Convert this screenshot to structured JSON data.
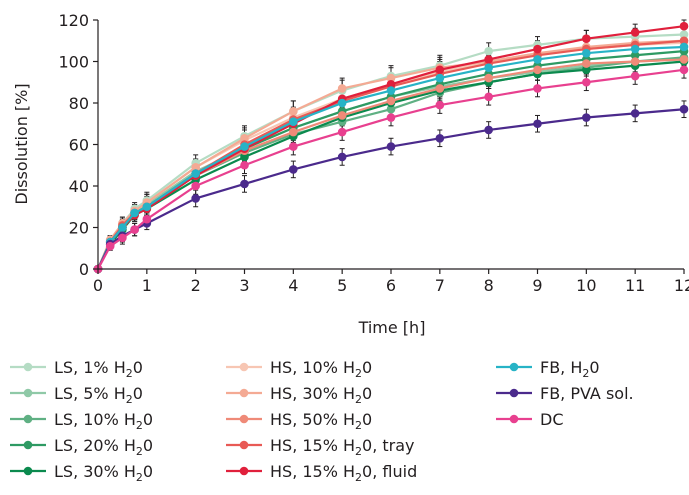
{
  "chart_data": {
    "type": "line",
    "xlabel": "Time [h]",
    "ylabel": "Dissolution [%]",
    "xlim": [
      0,
      12
    ],
    "ylim": [
      0,
      120
    ],
    "xticks": [
      0,
      1,
      2,
      3,
      4,
      5,
      6,
      7,
      8,
      9,
      10,
      11,
      12
    ],
    "yticks": [
      0,
      20,
      40,
      60,
      80,
      100,
      120
    ],
    "grid": false,
    "legend_position": "bottom",
    "x": [
      0,
      0.25,
      0.5,
      0.75,
      1,
      2,
      3,
      4,
      5,
      6,
      7,
      8,
      9,
      10,
      11,
      12
    ],
    "series": [
      {
        "name": "LS, 1% H",
        "sub": "2",
        "suffix": "0",
        "color": "#b5dcc4",
        "values": [
          0,
          14,
          22,
          29,
          33,
          51,
          64,
          76,
          86,
          93,
          98,
          105,
          108,
          111,
          112,
          113
        ],
        "err": [
          0,
          2,
          3,
          3,
          4,
          4,
          5,
          5,
          5,
          5,
          5,
          4,
          4,
          4,
          4,
          3
        ]
      },
      {
        "name": "LS, 5% H",
        "sub": "2",
        "suffix": "0",
        "color": "#8fc9a7",
        "values": [
          0,
          13,
          20,
          27,
          31,
          47,
          58,
          68,
          76,
          83,
          88,
          92,
          95,
          98,
          100,
          101
        ],
        "err": [
          0,
          2,
          3,
          3,
          4,
          4,
          4,
          4,
          4,
          4,
          4,
          4,
          4,
          3,
          3,
          3
        ]
      },
      {
        "name": "LS, 10% H",
        "sub": "2",
        "suffix": "0",
        "color": "#5fb083",
        "values": [
          0,
          13,
          20,
          27,
          30,
          45,
          56,
          65,
          71,
          77,
          85,
          90,
          94,
          97,
          100,
          102
        ],
        "err": [
          0,
          2,
          3,
          3,
          4,
          4,
          4,
          4,
          4,
          4,
          4,
          3,
          3,
          3,
          3,
          3
        ]
      },
      {
        "name": "LS, 20% H",
        "sub": "2",
        "suffix": "0",
        "color": "#2e9a63",
        "values": [
          0,
          13,
          20,
          27,
          30,
          46,
          58,
          68,
          76,
          83,
          89,
          94,
          98,
          101,
          103,
          105
        ],
        "err": [
          0,
          2,
          3,
          3,
          4,
          4,
          4,
          4,
          4,
          4,
          4,
          3,
          3,
          3,
          3,
          3
        ]
      },
      {
        "name": "LS, 30% H",
        "sub": "2",
        "suffix": "0",
        "color": "#0b8a4e",
        "values": [
          0,
          12,
          19,
          26,
          29,
          43,
          54,
          64,
          73,
          80,
          86,
          90,
          94,
          96,
          98,
          100
        ],
        "err": [
          0,
          2,
          3,
          3,
          4,
          4,
          4,
          4,
          4,
          4,
          4,
          3,
          3,
          3,
          3,
          3
        ]
      },
      {
        "name": "HS, 10% H",
        "sub": "2",
        "suffix": "0",
        "color": "#f7c6b3",
        "values": [
          0,
          14,
          21,
          28,
          32,
          49,
          62,
          73,
          82,
          89,
          95,
          100,
          104,
          106,
          108,
          109
        ],
        "err": [
          0,
          2,
          3,
          3,
          4,
          4,
          5,
          5,
          5,
          5,
          5,
          4,
          4,
          4,
          4,
          3
        ]
      },
      {
        "name": "HS, 30% H",
        "sub": "2",
        "suffix": "0",
        "color": "#f4aa94",
        "values": [
          0,
          14,
          22,
          28,
          32,
          49,
          63,
          76,
          87,
          92,
          97,
          100,
          104,
          107,
          109,
          110
        ],
        "err": [
          0,
          2,
          3,
          3,
          4,
          4,
          5,
          5,
          5,
          5,
          5,
          4,
          4,
          4,
          4,
          3
        ]
      },
      {
        "name": "HS, 50% H",
        "sub": "2",
        "suffix": "0",
        "color": "#ef8a78",
        "values": [
          0,
          13,
          20,
          26,
          30,
          45,
          57,
          66,
          74,
          81,
          87,
          92,
          96,
          99,
          100,
          101
        ],
        "err": [
          0,
          2,
          3,
          3,
          4,
          4,
          4,
          4,
          4,
          4,
          4,
          3,
          3,
          3,
          3,
          3
        ]
      },
      {
        "name": "HS, 15% H",
        "sub": "2",
        "suffix": "0, tray",
        "color": "#e85a55",
        "values": [
          0,
          13,
          21,
          27,
          30,
          46,
          60,
          72,
          81,
          88,
          94,
          99,
          103,
          106,
          108,
          110
        ],
        "err": [
          0,
          2,
          3,
          3,
          4,
          4,
          5,
          5,
          5,
          5,
          5,
          4,
          4,
          4,
          4,
          3
        ]
      },
      {
        "name": "HS, 15% H",
        "sub": "2",
        "suffix": "0, fluid",
        "color": "#e0203c",
        "values": [
          0,
          13,
          20,
          26,
          29,
          45,
          58,
          70,
          82,
          89,
          96,
          101,
          106,
          111,
          114,
          117
        ],
        "err": [
          0,
          2,
          3,
          3,
          4,
          4,
          5,
          5,
          5,
          5,
          5,
          4,
          4,
          4,
          4,
          3
        ]
      },
      {
        "name": "FB, H",
        "sub": "2",
        "suffix": "0",
        "color": "#27b3c6",
        "values": [
          0,
          13,
          20,
          27,
          30,
          46,
          59,
          71,
          80,
          86,
          92,
          97,
          101,
          104,
          106,
          107
        ],
        "err": [
          0,
          2,
          3,
          3,
          4,
          4,
          5,
          5,
          5,
          5,
          5,
          4,
          4,
          4,
          4,
          3
        ]
      },
      {
        "name": "FB, PVA sol.",
        "sub": "",
        "suffix": "",
        "color": "#4b2a8c",
        "values": [
          0,
          12,
          16,
          19,
          22,
          34,
          41,
          48,
          54,
          59,
          63,
          67,
          70,
          73,
          75,
          77
        ],
        "err": [
          0,
          2,
          3,
          3,
          3,
          4,
          4,
          4,
          4,
          4,
          4,
          4,
          4,
          4,
          4,
          4
        ]
      },
      {
        "name": "DC",
        "sub": "",
        "suffix": "",
        "color": "#e8408f",
        "values": [
          0,
          11,
          15,
          19,
          24,
          40,
          50,
          59,
          66,
          73,
          79,
          83,
          87,
          90,
          93,
          96
        ],
        "err": [
          0,
          2,
          3,
          3,
          3,
          4,
          4,
          4,
          4,
          4,
          4,
          4,
          4,
          4,
          4,
          4
        ]
      }
    ]
  }
}
